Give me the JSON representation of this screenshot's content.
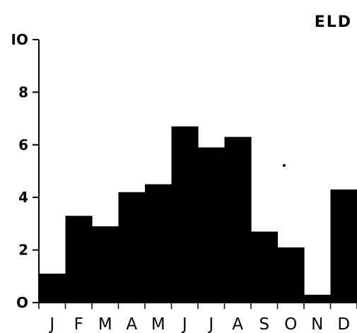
{
  "chart_data": {
    "type": "bar",
    "title": "ELD",
    "categories": [
      "J",
      "F",
      "M",
      "A",
      "M",
      "J",
      "J",
      "A",
      "S",
      "O",
      "N",
      "D"
    ],
    "values": [
      1.1,
      3.3,
      2.9,
      4.2,
      4.5,
      6.7,
      5.9,
      6.3,
      2.7,
      2.1,
      0.3,
      4.3
    ],
    "ylim": [
      0,
      10
    ],
    "yticks": [
      0,
      2,
      4,
      6,
      8,
      10
    ],
    "ytick_labels": [
      "O",
      "2",
      "4",
      "6",
      "8",
      "IO"
    ],
    "grid": false,
    "color": "#000000"
  }
}
